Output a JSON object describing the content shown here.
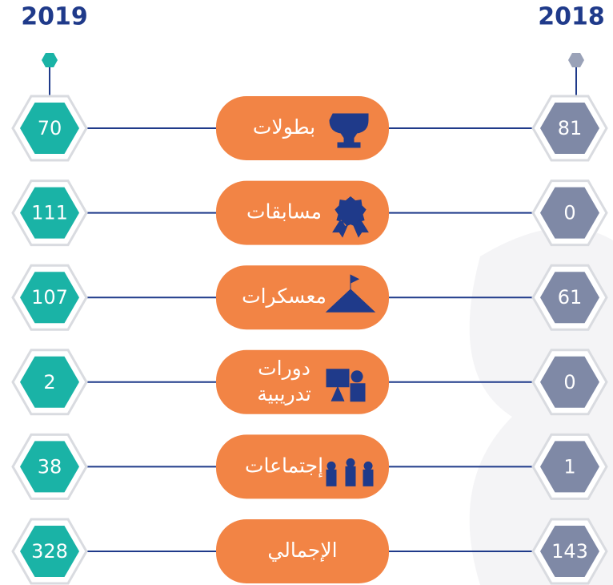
{
  "header": {
    "left_year": "2019",
    "right_year": "2018"
  },
  "rows": [
    {
      "label": [
        "بطولات"
      ],
      "value_2019": "70",
      "value_2018": "81"
    },
    {
      "label": [
        "مسابقات"
      ],
      "value_2019": "111",
      "value_2018": "0"
    },
    {
      "label": [
        "معسكرات"
      ],
      "value_2019": "107",
      "value_2018": "61"
    },
    {
      "label": [
        "دورات",
        "تدريبية"
      ],
      "value_2019": "2",
      "value_2018": "0"
    },
    {
      "label": [
        "إجتماعات"
      ],
      "value_2019": "38",
      "value_2018": "1"
    },
    {
      "label": [
        "الإجمالي"
      ],
      "value_2019": "328",
      "value_2018": "143"
    }
  ]
}
